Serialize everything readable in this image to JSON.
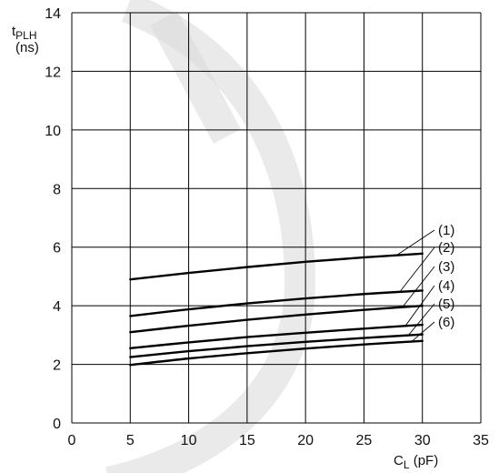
{
  "chart_data": {
    "type": "line",
    "title": "",
    "ylabel_main": "t",
    "ylabel_sub": "PLH",
    "ylabel_unit": "(ns)",
    "xlabel_main": "C",
    "xlabel_sub": "L",
    "xlabel_unit": " (pF)",
    "xlim": [
      0,
      35
    ],
    "ylim": [
      0,
      14
    ],
    "xticks": [
      0,
      5,
      10,
      15,
      20,
      25,
      30,
      35
    ],
    "yticks": [
      0,
      2,
      4,
      6,
      8,
      10,
      12,
      14
    ],
    "grid": true,
    "series": [
      {
        "name": "(1)",
        "x": [
          5,
          10,
          15,
          20,
          25,
          30
        ],
        "y": [
          4.9,
          5.12,
          5.32,
          5.5,
          5.65,
          5.78
        ]
      },
      {
        "name": "(2)",
        "x": [
          5,
          10,
          15,
          20,
          25,
          30
        ],
        "y": [
          3.65,
          3.88,
          4.08,
          4.25,
          4.4,
          4.52
        ]
      },
      {
        "name": "(3)",
        "x": [
          5,
          10,
          15,
          20,
          25,
          30
        ],
        "y": [
          3.1,
          3.32,
          3.52,
          3.7,
          3.86,
          4.0
        ]
      },
      {
        "name": "(4)",
        "x": [
          5,
          10,
          15,
          20,
          25,
          30
        ],
        "y": [
          2.55,
          2.75,
          2.93,
          3.08,
          3.22,
          3.35
        ]
      },
      {
        "name": "(5)",
        "x": [
          5,
          10,
          15,
          20,
          25,
          30
        ],
        "y": [
          2.25,
          2.45,
          2.62,
          2.77,
          2.9,
          3.02
        ]
      },
      {
        "name": "(6)",
        "x": [
          5,
          10,
          15,
          20,
          25,
          30
        ],
        "y": [
          1.98,
          2.2,
          2.38,
          2.54,
          2.68,
          2.8
        ]
      }
    ]
  }
}
